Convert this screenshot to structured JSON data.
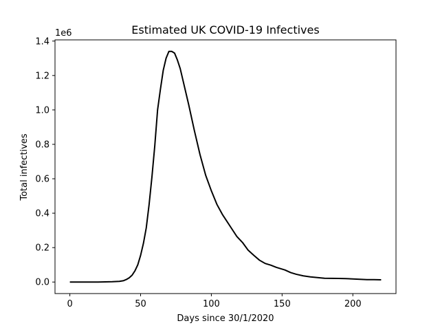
{
  "chart_data": {
    "type": "line",
    "title": "Estimated UK COVID-19 Infectives",
    "xlabel": "Days since 30/1/2020",
    "ylabel": "Total infectives",
    "y_offset_label": "1e6",
    "xlim": [
      -10.5,
      230.5
    ],
    "ylim": [
      -67000,
      1407000
    ],
    "x_ticks": [
      0,
      50,
      100,
      150,
      200
    ],
    "x_tick_labels": [
      "0",
      "50",
      "100",
      "150",
      "200"
    ],
    "y_ticks": [
      0,
      200000,
      400000,
      600000,
      800000,
      1000000,
      1200000,
      1400000
    ],
    "y_tick_labels": [
      "0.0",
      "0.2",
      "0.4",
      "0.6",
      "0.8",
      "1.0",
      "1.2",
      "1.4"
    ],
    "grid": false,
    "colors": {
      "line": "#000000",
      "axes": "#000000",
      "background": "#ffffff"
    },
    "series": [
      {
        "x": [
          0,
          10,
          20,
          30,
          35,
          38,
          40,
          42,
          44,
          46,
          48,
          50,
          52,
          54,
          56,
          58,
          60,
          62,
          64,
          66,
          68,
          70,
          72,
          74,
          76,
          78,
          80,
          84,
          88,
          92,
          96,
          100,
          104,
          108,
          110,
          114,
          118,
          122,
          126,
          130,
          134,
          138,
          142,
          146,
          150,
          152,
          156,
          160,
          165,
          170,
          175,
          180,
          190,
          195,
          200,
          205,
          210,
          215,
          220
        ],
        "y": [
          0,
          0,
          0,
          2000,
          4000,
          8000,
          15000,
          25000,
          40000,
          65000,
          100000,
          155000,
          225000,
          315000,
          450000,
          610000,
          790000,
          1000000,
          1120000,
          1230000,
          1300000,
          1340000,
          1340000,
          1330000,
          1290000,
          1240000,
          1170000,
          1030000,
          880000,
          740000,
          620000,
          530000,
          450000,
          390000,
          365000,
          315000,
          265000,
          230000,
          185000,
          155000,
          127000,
          108000,
          98000,
          85000,
          75000,
          70000,
          55000,
          45000,
          36000,
          30000,
          26000,
          22000,
          21000,
          20000,
          18000,
          16000,
          14000,
          14000,
          13000
        ]
      }
    ]
  }
}
